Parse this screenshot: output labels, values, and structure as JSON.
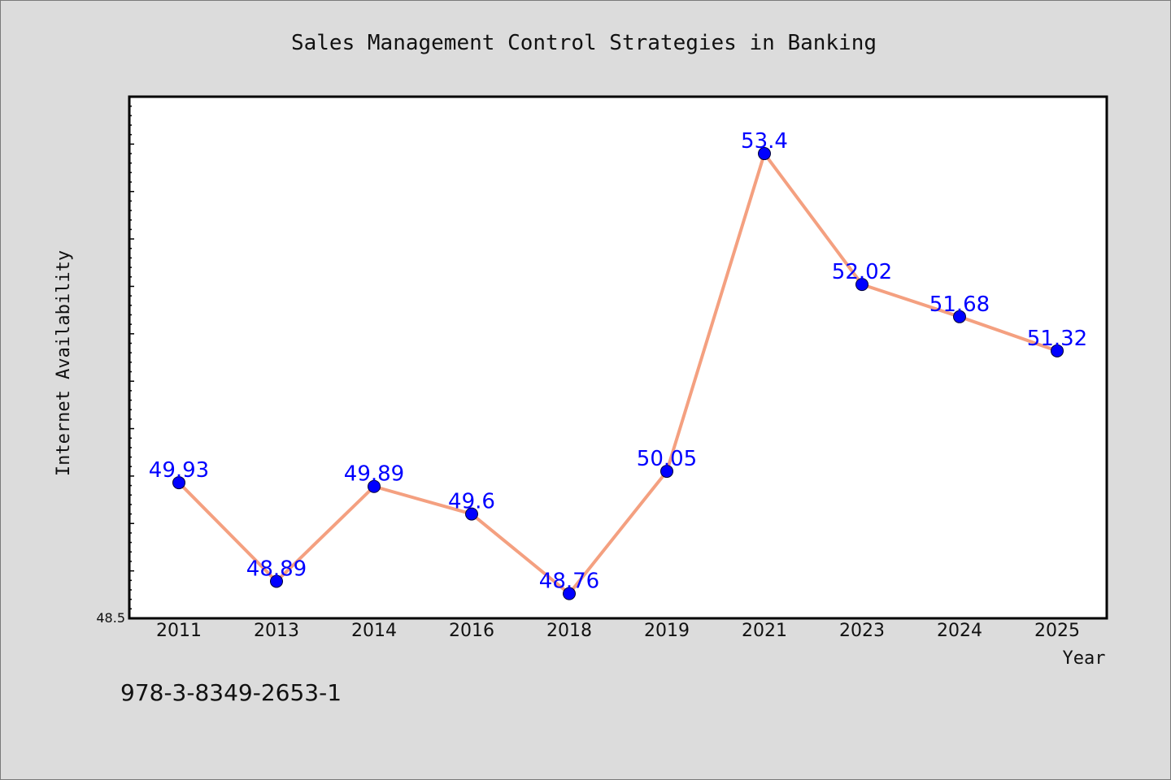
{
  "chart_data": {
    "type": "line",
    "title": "Sales Management Control Strategies in Banking",
    "xlabel": "Year",
    "ylabel": "Internet Availability",
    "categories": [
      "2011",
      "2013",
      "2014",
      "2016",
      "2018",
      "2019",
      "2021",
      "2023",
      "2024",
      "2025"
    ],
    "series": [
      {
        "values": [
          49.93,
          48.89,
          49.89,
          49.6,
          48.76,
          50.05,
          53.4,
          52.02,
          51.68,
          51.32
        ],
        "data_labels": [
          "49.93",
          "48.89",
          "49.89",
          "49.6",
          "48.76",
          "50.05",
          "53.4",
          "52.02",
          "51.68",
          "51.32"
        ],
        "line_color": "#f4a080",
        "marker_color": "#0000ff",
        "label_color": "#0000ff"
      }
    ],
    "ylim": [
      48.5,
      54.0
    ],
    "y_tick_labels": [
      "48.5"
    ],
    "grid": false,
    "legend": "none"
  },
  "footnote": "978-3-8349-2653-1"
}
